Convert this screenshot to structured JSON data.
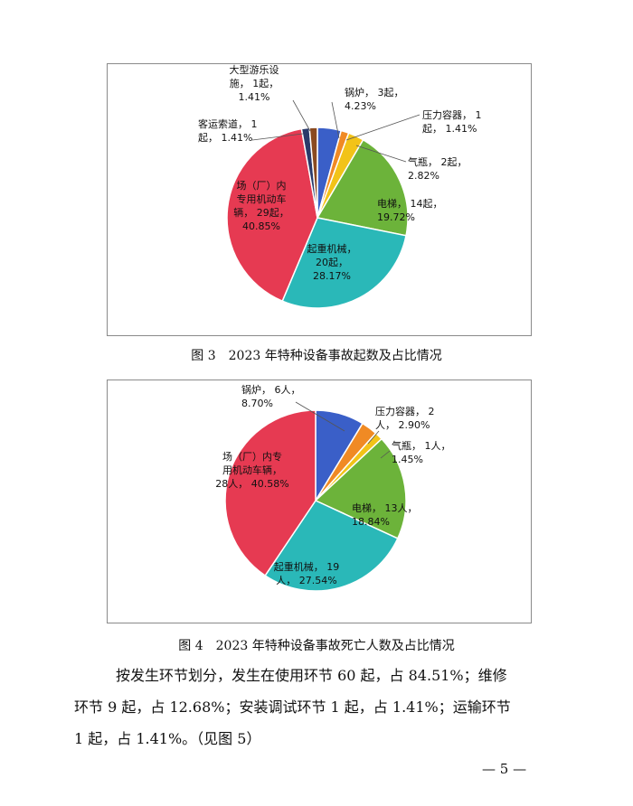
{
  "chart_data": [
    {
      "type": "pie",
      "caption": "图 3　2023 年特种设备事故起数及占比情况",
      "slices": [
        {
          "name": "锅炉",
          "value": 3,
          "label_lines": [
            "锅炉， 3起，",
            "4.23%"
          ],
          "color": "#3a5fc8"
        },
        {
          "name": "压力容器",
          "value": 1,
          "label_lines": [
            "压力容器， 1",
            "起， 1.41%"
          ],
          "color": "#f08a24"
        },
        {
          "name": "气瓶",
          "value": 2,
          "label_lines": [
            "气瓶， 2起，",
            "2.82%"
          ],
          "color": "#f2c318"
        },
        {
          "name": "电梯",
          "value": 14,
          "label_lines": [
            "电梯， 14起，",
            "19.72%"
          ],
          "color": "#6cb33a"
        },
        {
          "name": "起重机械",
          "value": 20,
          "label_lines": [
            "起重机械，",
            "20起，",
            "28.17%"
          ],
          "color": "#2ab8b8"
        },
        {
          "name": "场（厂）内专用机动车辆",
          "value": 29,
          "label_lines": [
            "场（厂）内",
            "专用机动车",
            "辆， 29起，",
            "40.85%"
          ],
          "color": "#e63a52"
        },
        {
          "name": "客运索道",
          "value": 1,
          "label_lines": [
            "客运索道， 1",
            "起， 1.41%"
          ],
          "color": "#2a3a6a"
        },
        {
          "name": "大型游乐设施",
          "value": 1,
          "label_lines": [
            "大型游乐设",
            "施， 1起，",
            "1.41%"
          ],
          "color": "#8a4a20"
        }
      ]
    },
    {
      "type": "pie",
      "caption": "图 4　2023 年特种设备事故死亡人数及占比情况",
      "slices": [
        {
          "name": "锅炉",
          "value": 6,
          "label_lines": [
            "锅炉， 6人，",
            "8.70%"
          ],
          "color": "#3a5fc8"
        },
        {
          "name": "压力容器",
          "value": 2,
          "label_lines": [
            "压力容器， 2",
            "人， 2.90%"
          ],
          "color": "#f08a24"
        },
        {
          "name": "气瓶",
          "value": 1,
          "label_lines": [
            "气瓶， 1人，",
            "1.45%"
          ],
          "color": "#f2c318"
        },
        {
          "name": "电梯",
          "value": 13,
          "label_lines": [
            "电梯， 13人，",
            "18.84%"
          ],
          "color": "#6cb33a"
        },
        {
          "name": "起重机械",
          "value": 19,
          "label_lines": [
            "起重机械， 19",
            "人， 27.54%"
          ],
          "color": "#2ab8b8"
        },
        {
          "name": "场（厂）内专用机动车辆",
          "value": 28,
          "label_lines": [
            "场（厂）内专",
            "用机动车辆，",
            "28人， 40.58%"
          ],
          "color": "#e63a52"
        }
      ]
    }
  ],
  "body_text": [
    "按发生环节划分，发生在使用环节 60 起，占 84.51%；维修",
    "环节 9 起，占 12.68%；安装调试环节 1 起，占 1.41%；运输环节",
    "1 起，占 1.41%。（见图 5）"
  ],
  "page_number": "— 5 —"
}
